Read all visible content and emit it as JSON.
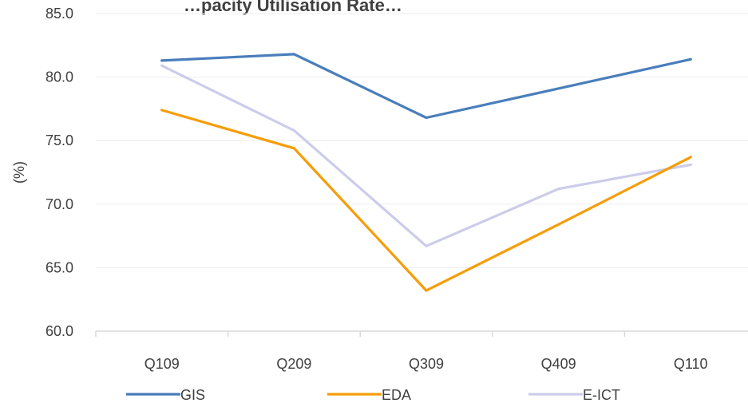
{
  "chart_data": {
    "type": "line",
    "title": "…pacity Utilisation Rate…",
    "ylabel": "(%)",
    "xlabel": "",
    "categories": [
      "Q109",
      "Q209",
      "Q309",
      "Q409",
      "Q110"
    ],
    "ylim": [
      60.0,
      85.0
    ],
    "yticks": [
      "60.0",
      "65.0",
      "70.0",
      "75.0",
      "80.0",
      "85.0"
    ],
    "grid": true,
    "legend_position": "bottom",
    "series": [
      {
        "name": "GIS",
        "color": "#4a7ebb",
        "values": [
          81.3,
          81.8,
          76.8,
          79.1,
          81.4
        ]
      },
      {
        "name": "EDA",
        "color": "#f59d0a",
        "values": [
          77.4,
          74.4,
          63.2,
          68.4,
          73.7
        ]
      },
      {
        "name": "E-ICT",
        "color": "#ccccea",
        "values": [
          80.9,
          75.8,
          66.7,
          71.2,
          73.1
        ]
      }
    ]
  }
}
